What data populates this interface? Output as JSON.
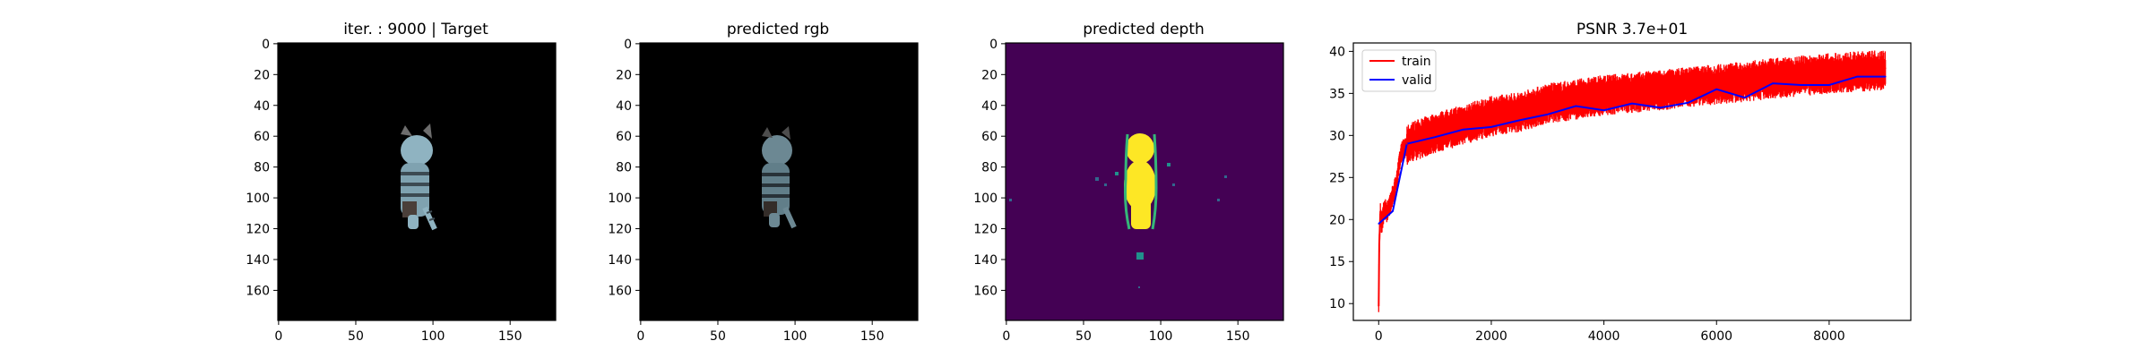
{
  "panels": [
    {
      "title": "iter. : 9000 | Target",
      "xticks": [
        0,
        50,
        100,
        150
      ],
      "yticks": [
        0,
        20,
        40,
        60,
        80,
        100,
        120,
        140,
        160
      ]
    },
    {
      "title": "predicted rgb",
      "xticks": [
        0,
        50,
        100,
        150
      ],
      "yticks": [
        0,
        20,
        40,
        60,
        80,
        100,
        120,
        140,
        160
      ]
    },
    {
      "title": "predicted depth",
      "xticks": [
        0,
        50,
        100,
        150
      ],
      "yticks": [
        0,
        20,
        40,
        60,
        80,
        100,
        120,
        140,
        160
      ]
    }
  ],
  "colors": {
    "image_background": "#000000",
    "depth_background": "#440154",
    "depth_foreground": "#fde725",
    "subject_body": "#8fb3c1",
    "train": "#ff0000",
    "valid": "#0000ff"
  },
  "chart_data": {
    "type": "line",
    "title": "PSNR 3.7e+01",
    "xlim": [
      -450,
      9450
    ],
    "ylim": [
      8,
      41
    ],
    "xticks": [
      0,
      2000,
      4000,
      6000,
      8000
    ],
    "yticks": [
      10,
      15,
      20,
      25,
      30,
      35,
      40
    ],
    "legend": "top-left",
    "series": [
      {
        "name": "train",
        "color": "#ff0000",
        "x": [
          0,
          10,
          30,
          50,
          100,
          150,
          200,
          300,
          400,
          500,
          600,
          800,
          1000,
          1500,
          2000,
          2500,
          3000,
          3500,
          4000,
          4500,
          5000,
          5500,
          6000,
          6500,
          7000,
          7500,
          8000,
          8500,
          9000
        ],
        "y": [
          9.7,
          17,
          21,
          19.5,
          21.5,
          21,
          22,
          24,
          28,
          29,
          29.5,
          30,
          30.5,
          31.5,
          32.5,
          33,
          34,
          34.5,
          35,
          35.3,
          35.6,
          36,
          36.3,
          36.6,
          37,
          37.3,
          37.6,
          37.8,
          38
        ]
      },
      {
        "name": "valid",
        "color": "#0000ff",
        "x": [
          0,
          250,
          500,
          1000,
          1500,
          2000,
          2500,
          3000,
          3500,
          4000,
          4500,
          5000,
          5500,
          6000,
          6500,
          7000,
          7500,
          8000,
          8500,
          9000
        ],
        "y": [
          19.5,
          21,
          29,
          29.8,
          30.7,
          31,
          31.8,
          32.5,
          33.5,
          33,
          33.8,
          33.3,
          33.9,
          35.5,
          34.5,
          36.2,
          36,
          36,
          37,
          37
        ]
      }
    ]
  }
}
